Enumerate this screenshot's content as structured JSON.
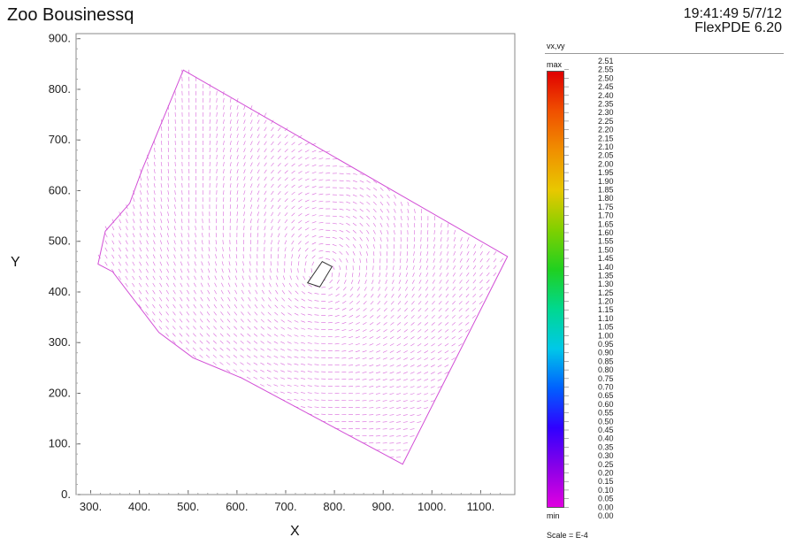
{
  "title": "Zoo Bousinessq",
  "timestamp": "19:41:49 5/7/12",
  "software": "FlexPDE 6.20",
  "chart_data": {
    "type": "vector field",
    "xlabel": "X",
    "ylabel": "Y",
    "xlim": [
      270,
      1170
    ],
    "ylim": [
      0,
      910
    ],
    "x_ticks": [
      "300.",
      "400.",
      "500.",
      "600.",
      "700.",
      "800.",
      "900.",
      "1000.",
      "1100."
    ],
    "x_tick_values": [
      300,
      400,
      500,
      600,
      700,
      800,
      900,
      1000,
      1100
    ],
    "y_ticks": [
      "0.",
      "100.",
      "200.",
      "300.",
      "400.",
      "500.",
      "600.",
      "700.",
      "800.",
      "900."
    ],
    "y_tick_values": [
      0,
      100,
      200,
      300,
      400,
      500,
      600,
      700,
      800,
      900
    ],
    "domain_outline": [
      [
        490,
        838
      ],
      [
        1155,
        470
      ],
      [
        940,
        60
      ],
      [
        610,
        230
      ],
      [
        510,
        270
      ],
      [
        440,
        320
      ],
      [
        345,
        440
      ],
      [
        315,
        455
      ],
      [
        330,
        520
      ],
      [
        380,
        575
      ],
      [
        405,
        640
      ],
      [
        490,
        838
      ]
    ],
    "obstacle": [
      [
        745,
        418
      ],
      [
        775,
        460
      ],
      [
        795,
        450
      ],
      [
        770,
        410
      ]
    ],
    "vector_color": "#d24fd6",
    "legend": {
      "title": "vx,vy",
      "max_label": "max",
      "min_label": "min",
      "values": [
        "2.51",
        "2.55",
        "2.50",
        "2.45",
        "2.40",
        "2.35",
        "2.30",
        "2.25",
        "2.20",
        "2.15",
        "2.10",
        "2.05",
        "2.00",
        "1.95",
        "1.90",
        "1.85",
        "1.80",
        "1.75",
        "1.70",
        "1.65",
        "1.60",
        "1.55",
        "1.50",
        "1.45",
        "1.40",
        "1.35",
        "1.30",
        "1.25",
        "1.20",
        "1.15",
        "1.10",
        "1.05",
        "1.00",
        "0.95",
        "0.90",
        "0.85",
        "0.80",
        "0.75",
        "0.70",
        "0.65",
        "0.60",
        "0.55",
        "0.50",
        "0.45",
        "0.40",
        "0.35",
        "0.30",
        "0.25",
        "0.20",
        "0.15",
        "0.10",
        "0.05",
        "0.00",
        "0.00"
      ],
      "scale_note": "Scale = E-4"
    }
  }
}
